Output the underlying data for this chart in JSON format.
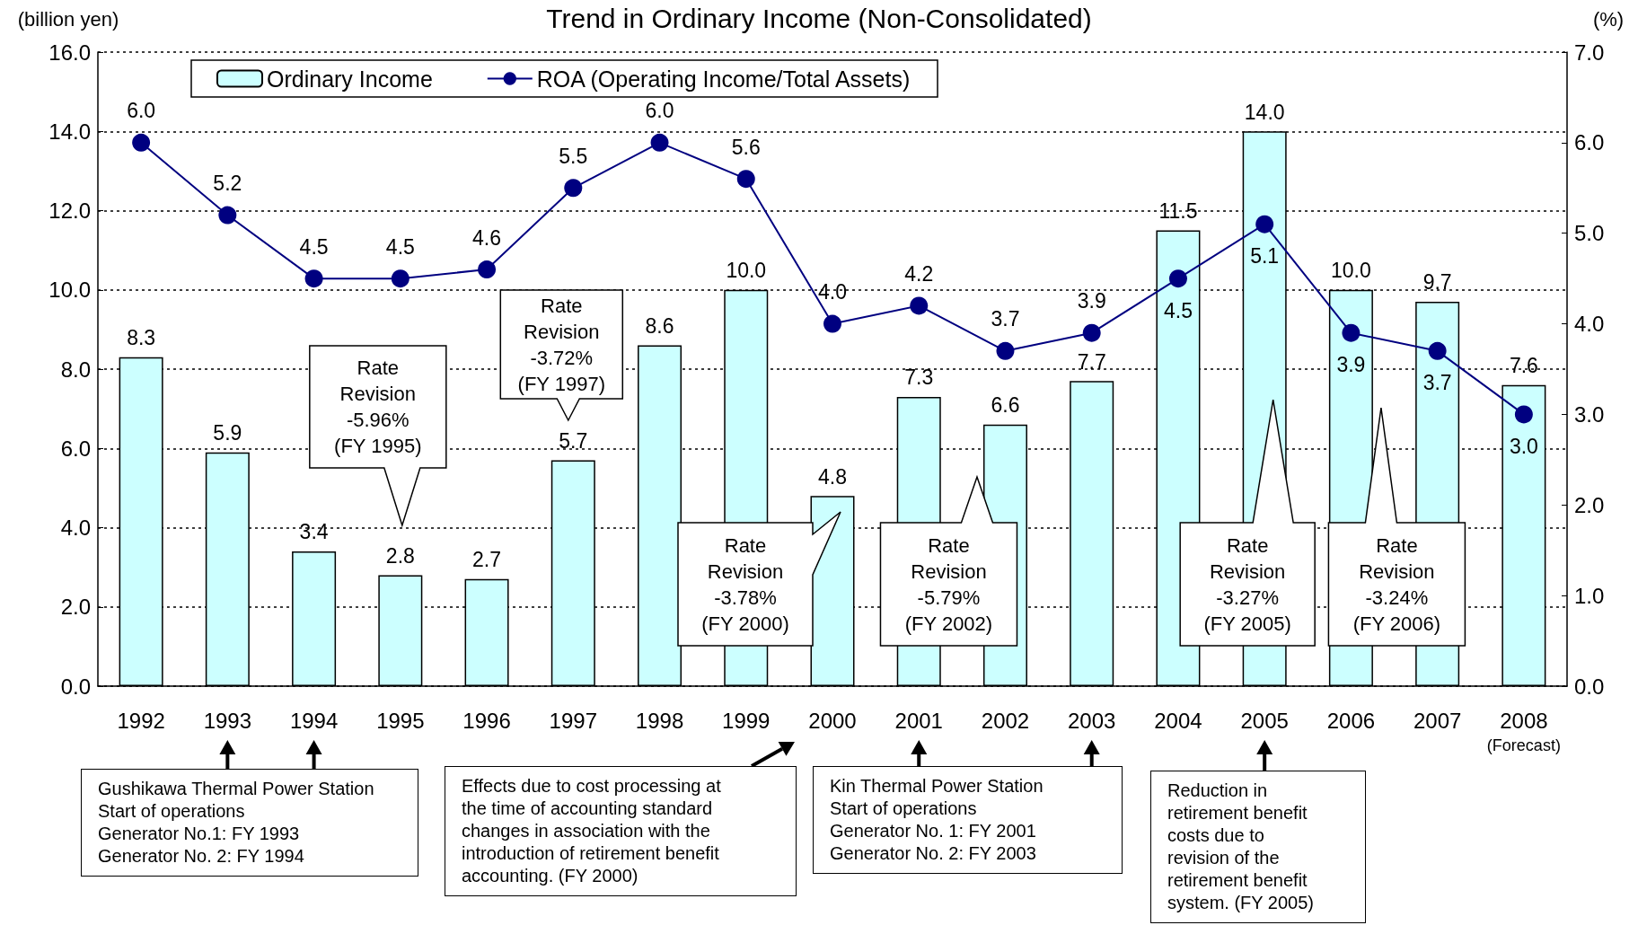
{
  "chart_data": {
    "type": "bar",
    "title": "Trend in Ordinary Income (Non-Consolidated)",
    "ylabel": "(billion yen)",
    "y2label": "(%)",
    "categories": [
      "1992",
      "1993",
      "1994",
      "1995",
      "1996",
      "1997",
      "1998",
      "1999",
      "2000",
      "2001",
      "2002",
      "2003",
      "2004",
      "2005",
      "2006",
      "2007",
      "2008"
    ],
    "series": [
      {
        "name": "Ordinary Income",
        "color": "#ccffff",
        "values": [
          8.3,
          5.9,
          3.4,
          2.8,
          2.7,
          5.7,
          8.6,
          10.0,
          4.8,
          7.3,
          6.6,
          7.7,
          11.5,
          14.0,
          10.0,
          9.7,
          7.6
        ],
        "value_labels": [
          "8.3",
          "5.9",
          "3.4",
          "2.8",
          "2.7",
          "5.7",
          "8.6",
          "10.0",
          "4.8",
          "7.3",
          "6.6",
          "7.7",
          "11.5",
          "14.0",
          "10.0",
          "9.7",
          "7.6"
        ]
      },
      {
        "name": "ROA (Operating Income/Total Assets)",
        "type": "line",
        "axis": "y2",
        "color": "#000080",
        "marker": "circle",
        "values": [
          6.0,
          5.2,
          4.5,
          4.5,
          4.6,
          5.5,
          6.0,
          5.6,
          4.0,
          4.2,
          3.7,
          3.9,
          4.5,
          5.1,
          3.9,
          3.7,
          3.0
        ],
        "value_labels": [
          "6.0",
          "5.2",
          "4.5",
          "4.5",
          "4.6",
          "5.5",
          "6.0",
          "5.6",
          "4.0",
          "4.2",
          "3.7",
          "3.9",
          "4.5",
          "5.1",
          "3.9",
          "3.7",
          "3.0"
        ]
      }
    ],
    "ylim": [
      0,
      16
    ],
    "yticks": [
      {
        "value": 0,
        "label": "0.0"
      },
      {
        "value": 2,
        "label": "2.0"
      },
      {
        "value": 4,
        "label": "4.0"
      },
      {
        "value": 6,
        "label": "6.0"
      },
      {
        "value": 8,
        "label": "8.0"
      },
      {
        "value": 10,
        "label": "10.0"
      },
      {
        "value": 12,
        "label": "12.0"
      },
      {
        "value": 14,
        "label": "14.0"
      },
      {
        "value": 16,
        "label": "16.0"
      }
    ],
    "y2lim": [
      0,
      7
    ],
    "y2ticks": [
      {
        "value": 0,
        "label": "0.0"
      },
      {
        "value": 1,
        "label": "1.0"
      },
      {
        "value": 2,
        "label": "2.0"
      },
      {
        "value": 3,
        "label": "3.0"
      },
      {
        "value": 4,
        "label": "4.0"
      },
      {
        "value": 5,
        "label": "5.0"
      },
      {
        "value": 6,
        "label": "6.0"
      },
      {
        "value": 7,
        "label": "7.0"
      }
    ],
    "grid": "y",
    "legend": "top left",
    "annotations": [
      "Rate\nRevision\n-5.96%\n(FY 1995)",
      "Rate\nRevision\n-3.72%\n(FY 1997)",
      "Rate\nRevision\n-3.78%\n(FY 2000)",
      "Rate\nRevision\n-5.79%\n(FY 2002)",
      "Rate\nRevision\n-3.27%\n(FY 2005)",
      "Rate\nRevision\n-3.24%\n(FY 2006)",
      "(Forecast)",
      "Gushikawa Thermal Power Station\nStart of operations\nGenerator No.1: FY 1993\nGenerator No. 2: FY 1994",
      "Effects due to cost processing at\nthe time of accounting standard\nchanges in association with the\nintroduction of retirement benefit\naccounting. (FY 2000)",
      "Kin Thermal Power Station\nStart of operations\nGenerator No. 1: FY 2001\nGenerator No. 2: FY 2003",
      "Reduction in\nretirement benefit\ncosts due to\nrevision of the\nretirement benefit\nsystem. (FY 2005)"
    ]
  }
}
